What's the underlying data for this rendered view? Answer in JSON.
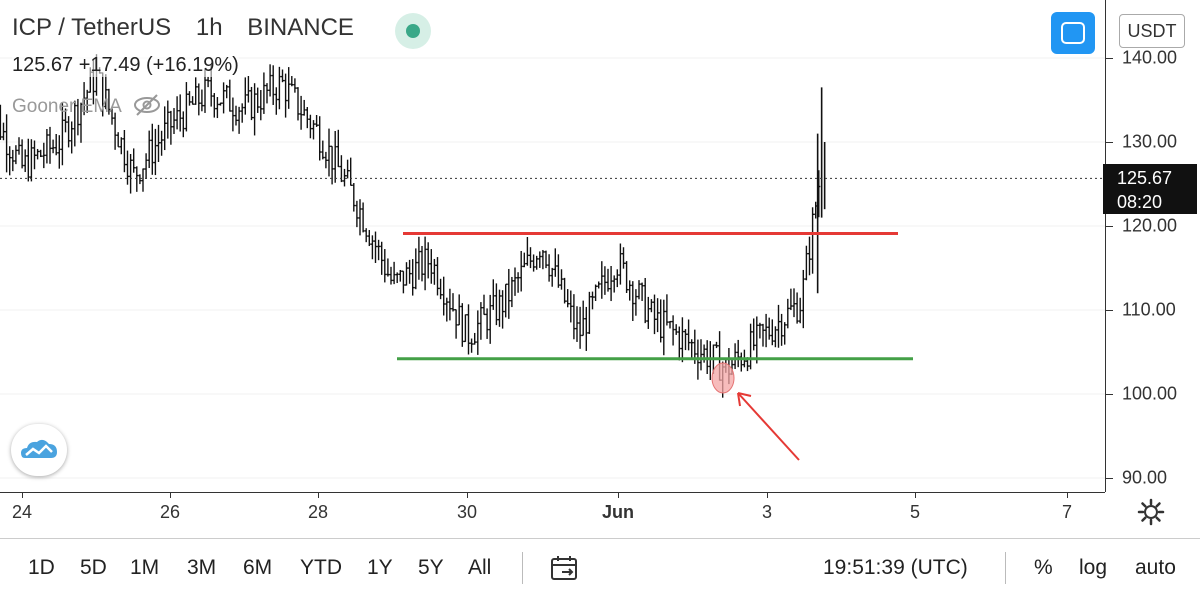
{
  "legend": {
    "symbol": "ICP / TetherUS",
    "interval": "1h",
    "exchange": "BINANCE",
    "ohlc_text": "125.67  +17.49 (+16.19%)",
    "indicator": "Gooner EMA"
  },
  "currency_button": "USDT",
  "current_price": {
    "price": "125.67",
    "countdown": "08:20"
  },
  "price_axis": {
    "ticks": [
      "140.00",
      "130.00",
      "120.00",
      "110.00",
      "100.00",
      "90.00"
    ],
    "values": [
      140,
      130,
      120,
      110,
      100,
      90
    ]
  },
  "date_axis": {
    "labels": [
      {
        "text": "24",
        "bold": false
      },
      {
        "text": "26",
        "bold": false
      },
      {
        "text": "28",
        "bold": false
      },
      {
        "text": "30",
        "bold": false
      },
      {
        "text": "Jun",
        "bold": true
      },
      {
        "text": "3",
        "bold": false
      },
      {
        "text": "5",
        "bold": false
      },
      {
        "text": "7",
        "bold": false
      }
    ]
  },
  "toolbar": {
    "timeframes": [
      "1D",
      "5D",
      "1M",
      "3M",
      "6M",
      "YTD",
      "1Y",
      "5Y",
      "All"
    ],
    "clock": "19:51:39 (UTC)",
    "percent": "%",
    "log": "log",
    "auto": "auto"
  },
  "colors": {
    "resistance_line": "#e53935",
    "support_line": "#43a047",
    "annotation_arrow": "#e53935",
    "annotation_circle": "#f4a6a6",
    "bars": "#111111",
    "accent": "#2196f3"
  },
  "chart_data": {
    "type": "ohlc_bar",
    "symbol": "ICP / TetherUS",
    "interval": "1h",
    "price_axis_range": [
      90,
      145
    ],
    "current_price": 125.67,
    "resistance_level": 119.1,
    "support_level": 104.2,
    "path_points": [
      [
        "05-23 12:00",
        135
      ],
      [
        "05-24 00:00",
        127
      ],
      [
        "05-24 12:00",
        130
      ],
      [
        "05-25 00:00",
        138
      ],
      [
        "05-25 12:00",
        126
      ],
      [
        "05-26 00:00",
        132
      ],
      [
        "05-26 12:00",
        136
      ],
      [
        "05-27 00:00",
        134
      ],
      [
        "05-27 12:00",
        137
      ],
      [
        "05-28 00:00",
        131
      ],
      [
        "05-28 12:00",
        123
      ],
      [
        "05-29 00:00",
        113
      ],
      [
        "05-29 12:00",
        116
      ],
      [
        "05-30 00:00",
        107
      ],
      [
        "05-30 12:00",
        111
      ],
      [
        "05-31 00:00",
        118
      ],
      [
        "05-31 12:00",
        107
      ],
      [
        "06-01 00:00",
        116
      ],
      [
        "06-01 12:00",
        109
      ],
      [
        "06-02 00:00",
        106
      ],
      [
        "06-02 12:00",
        103
      ],
      [
        "06-03 00:00",
        107
      ],
      [
        "06-03 12:00",
        111
      ],
      [
        "06-03 18:00",
        125.67
      ]
    ]
  }
}
